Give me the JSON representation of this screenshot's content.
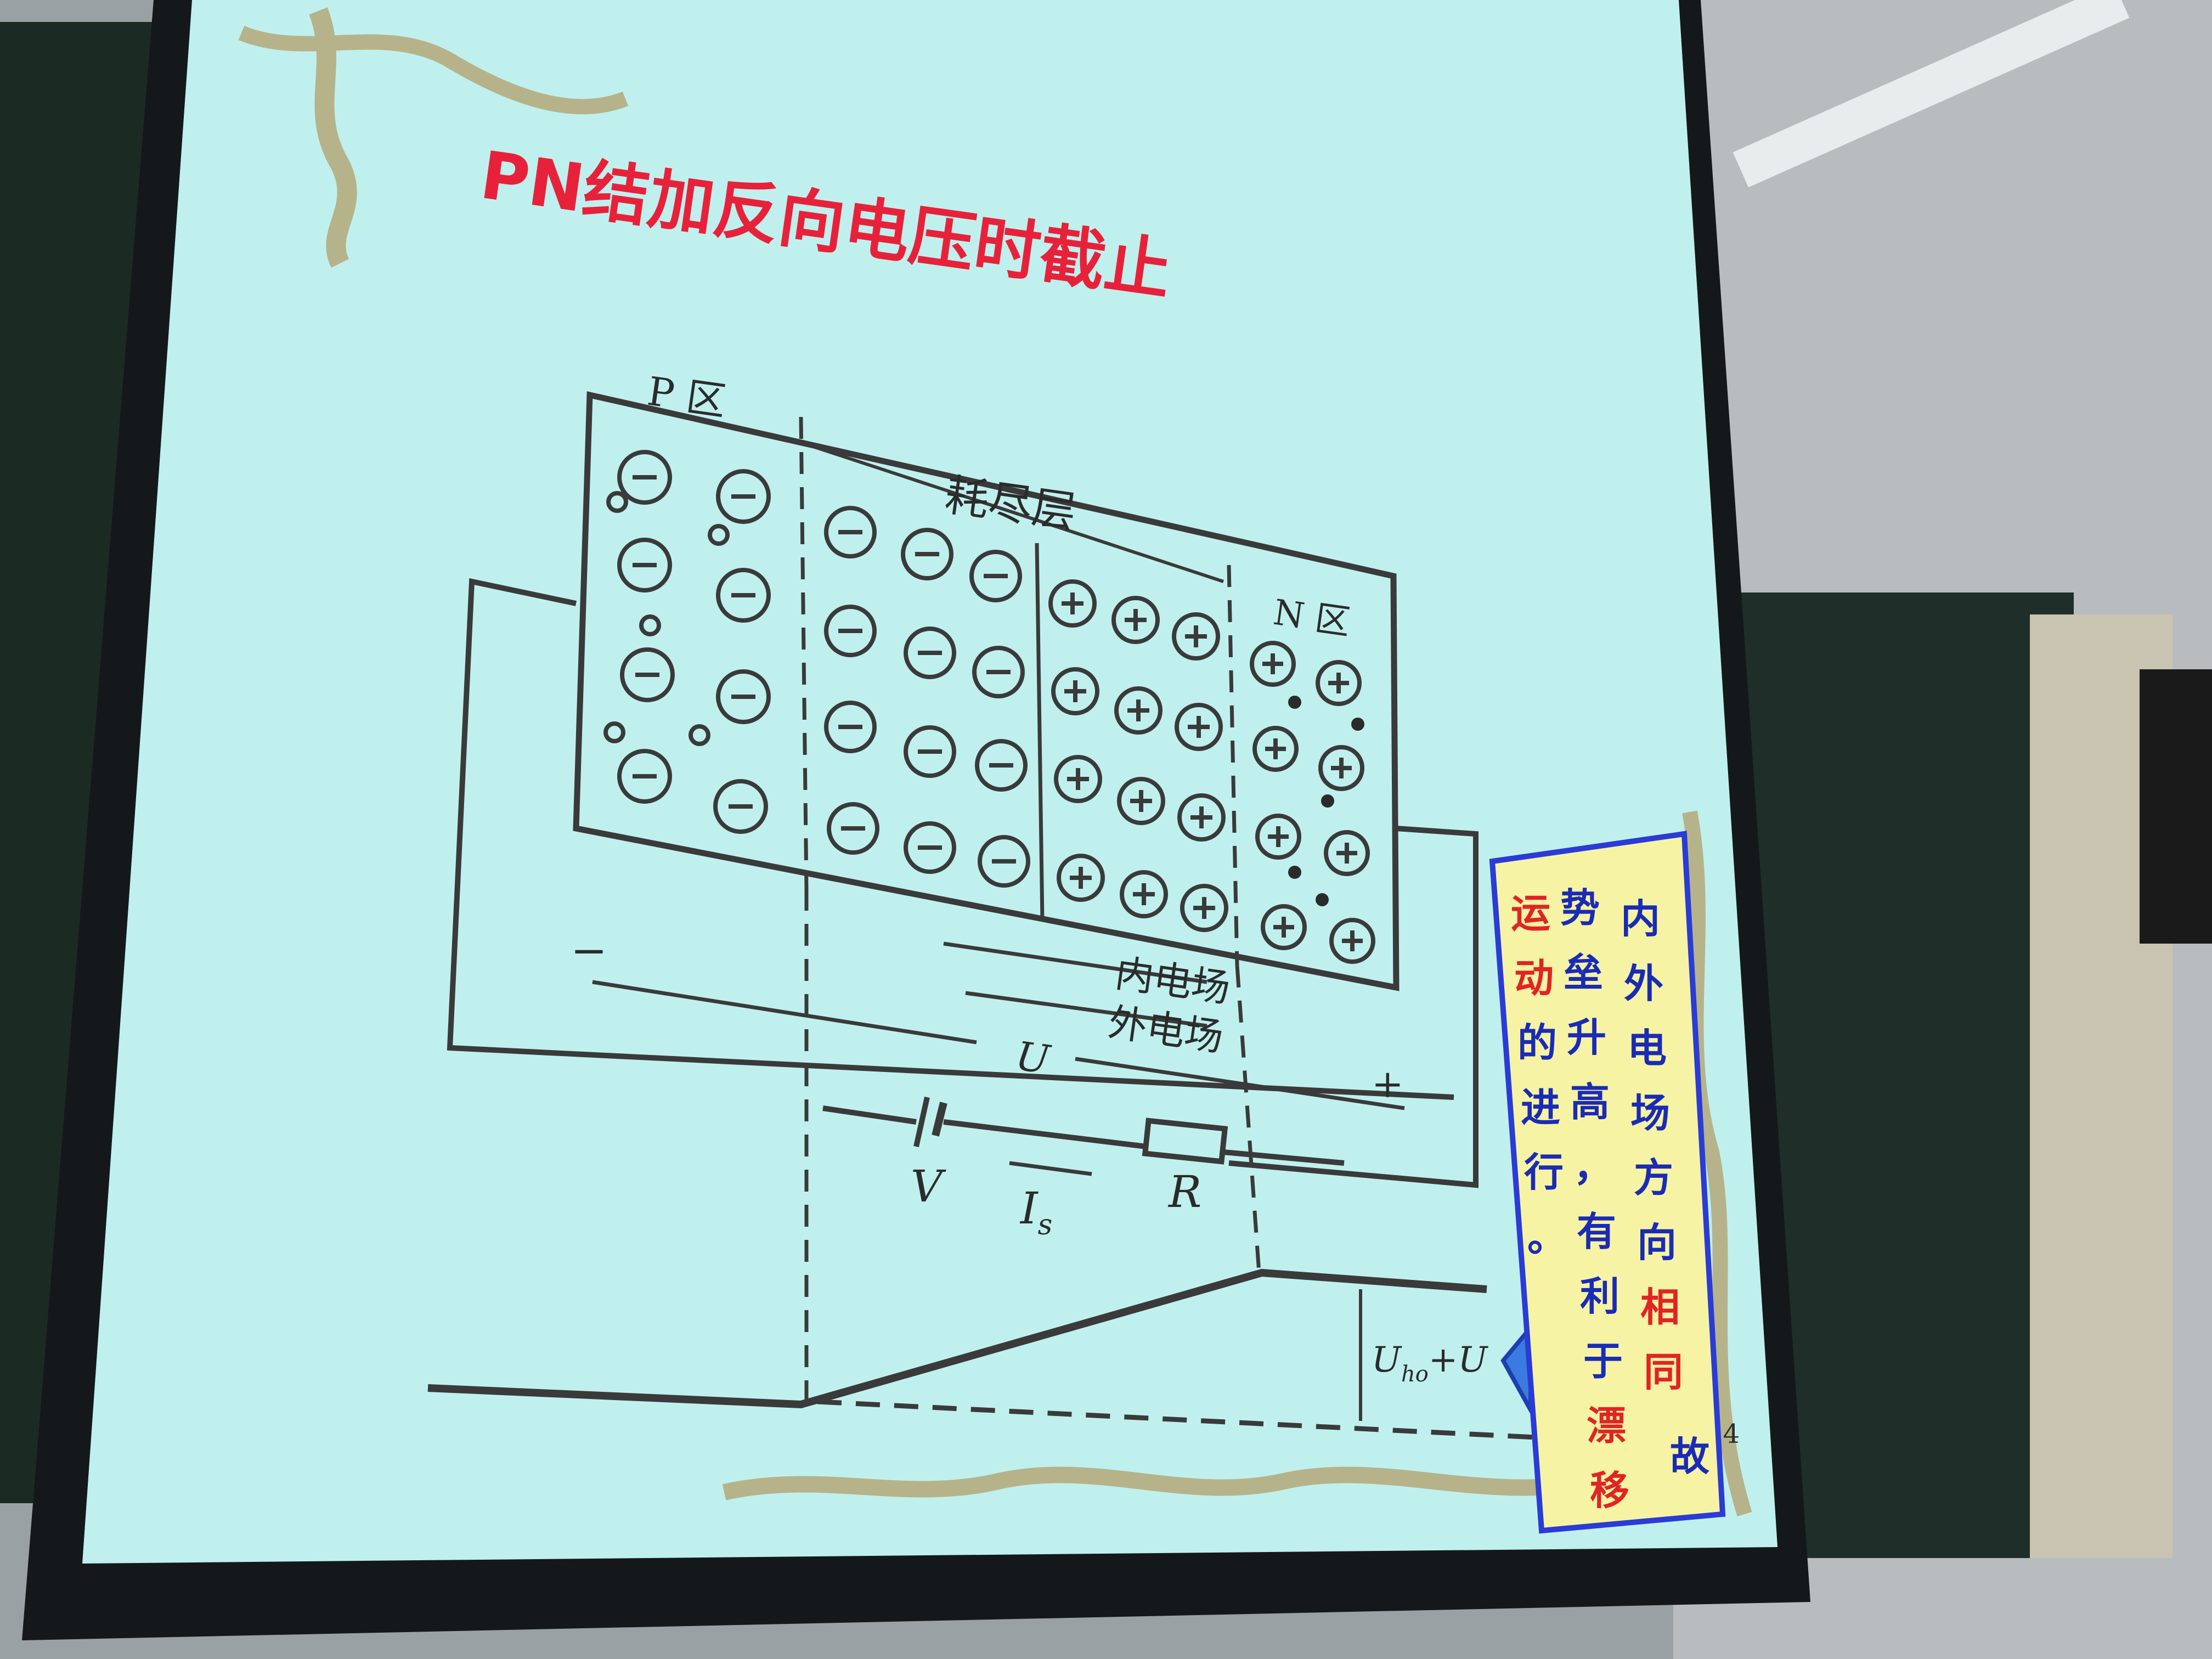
{
  "slide": {
    "title": "PN结加反向电压时截止",
    "labels": {
      "p_region": "P 区",
      "n_region": "N 区",
      "depletion_layer": "耗尽层",
      "inner_field": "内电场",
      "outer_field": "外电场",
      "voltage_u": "U",
      "battery_v": "V",
      "current_is": "I",
      "current_is_sub": "s",
      "resistor_r": "R",
      "minus_sign": "−",
      "plus_sign": "+",
      "barrier_main": "U",
      "barrier_sub": "ho",
      "barrier_tail": "+U",
      "page_number": "34"
    },
    "note": {
      "col1": [
        "内",
        "外",
        "电",
        "场",
        "方",
        "向",
        "相",
        "同"
      ],
      "col2": [
        "势",
        "垒",
        "升",
        "高",
        "，",
        "有",
        "利",
        "于",
        "漂",
        "移"
      ],
      "col3": [
        "运",
        "动",
        "的",
        "进",
        "行",
        "。"
      ],
      "col4": [
        "故"
      ],
      "highlight_color": "#e02424",
      "text_color": "#1a2bb5"
    },
    "colors": {
      "slide_bg": "#bff0ee",
      "title": "#e8213a",
      "note_bg": "#f6f3a4",
      "note_border": "#2a3bd6"
    }
  }
}
